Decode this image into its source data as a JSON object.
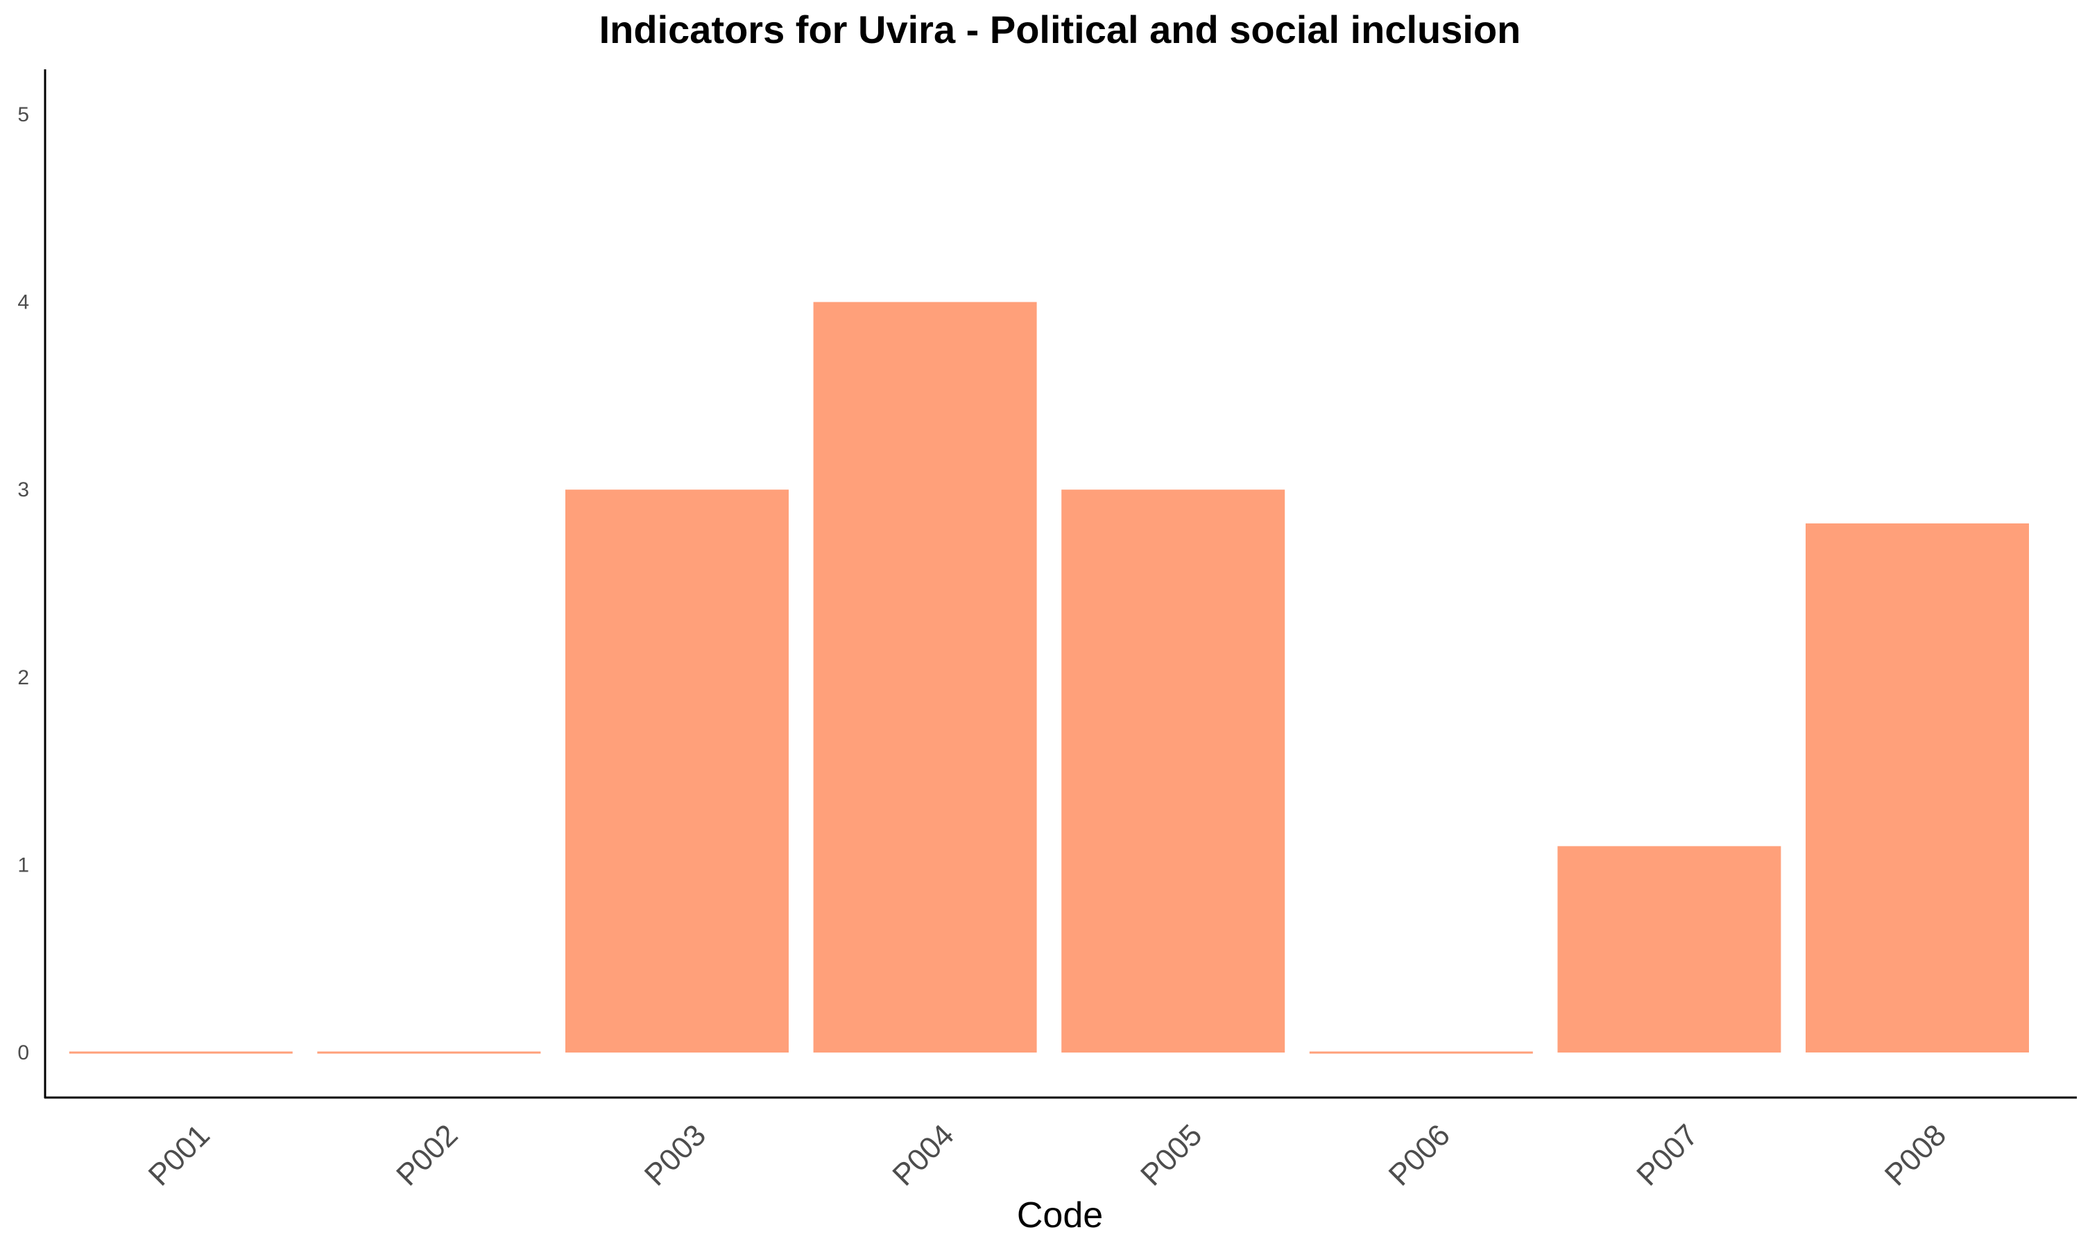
{
  "chart_data": {
    "type": "bar",
    "title": "Indicators for Uvira - Political and social inclusion",
    "xlabel": "Code",
    "ylabel": "",
    "categories": [
      "P001",
      "P002",
      "P003",
      "P004",
      "P005",
      "P006",
      "P007",
      "P008"
    ],
    "values": [
      0,
      0,
      3,
      4,
      3,
      0,
      1.1,
      2.82
    ],
    "ylim": [
      -0.24,
      5.24
    ],
    "yticks": [
      "0",
      "1",
      "2",
      "3",
      "4",
      "5"
    ],
    "grid": false,
    "legend": "none",
    "bar_color": "#FFA07A"
  }
}
